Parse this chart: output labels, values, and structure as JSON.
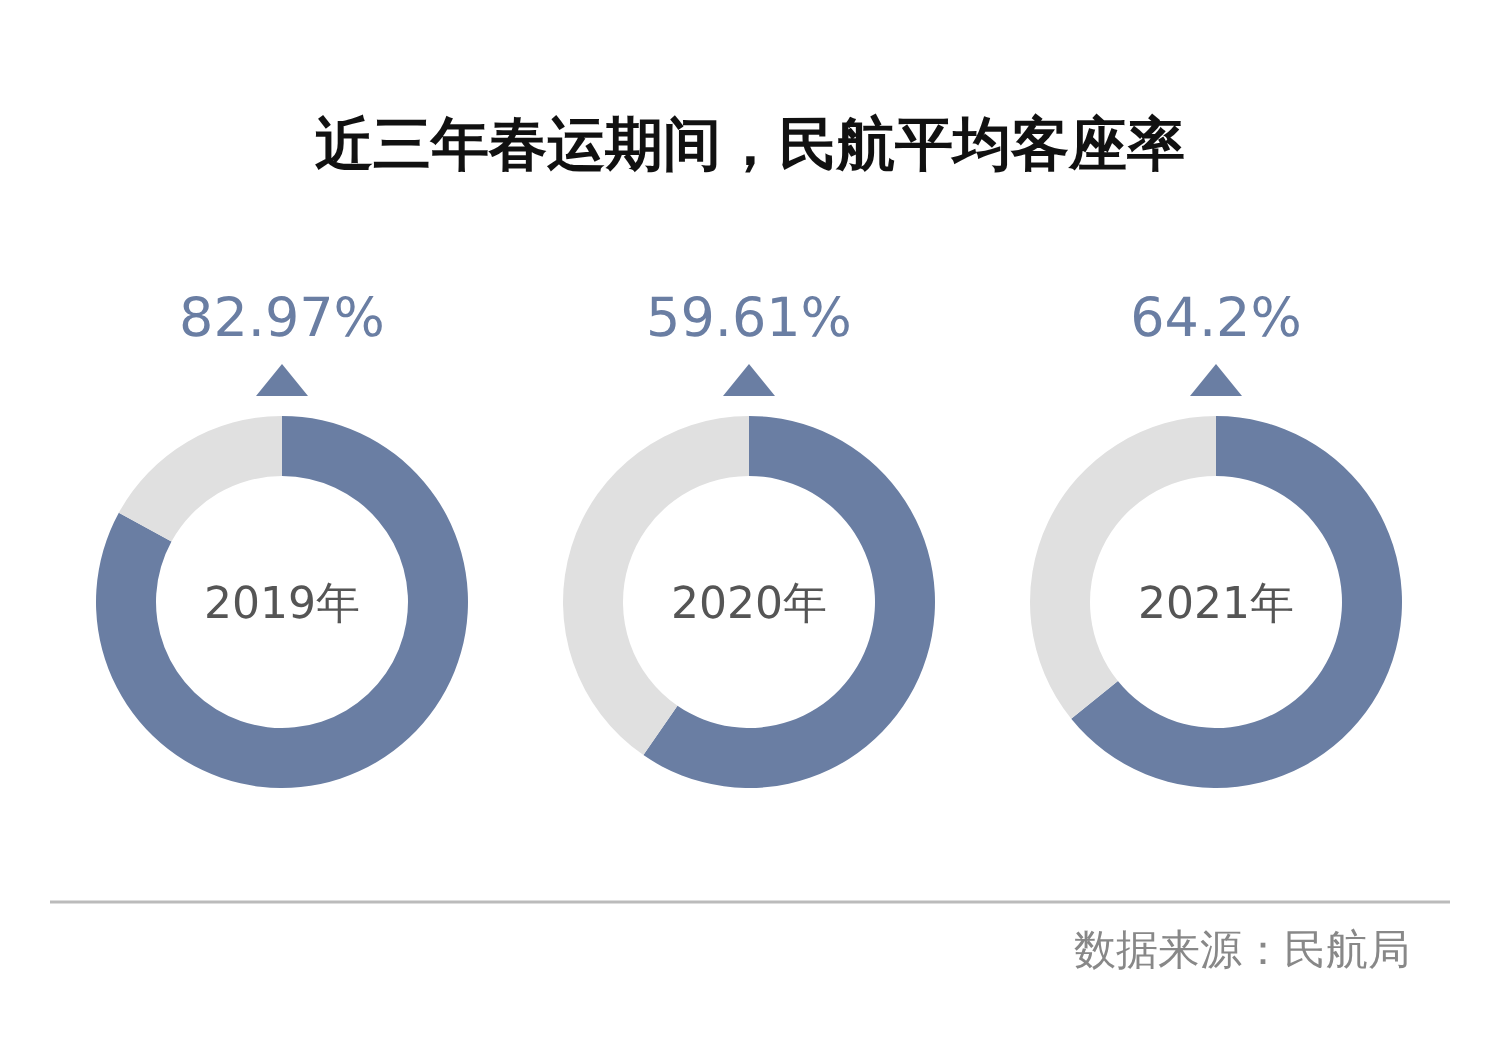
{
  "chart_data": [
    {
      "type": "donut",
      "title": "近三年春运期间，民航平均客座率",
      "categories": [
        null,
        null
      ],
      "values": [
        82.97,
        17.03
      ],
      "colors": [
        "#6a7ea3",
        "#e0e0e0"
      ],
      "value_labels": [
        "82.97%",
        null
      ],
      "annotations": [
        "2019年"
      ]
    },
    {
      "type": "donut",
      "categories": [
        null,
        null
      ],
      "values": [
        59.61,
        40.39
      ],
      "colors": [
        "#6a7ea3",
        "#e0e0e0"
      ],
      "value_labels": [
        "59.61%",
        null
      ],
      "annotations": [
        "2020年"
      ]
    },
    {
      "type": "donut",
      "categories": [
        null,
        null
      ],
      "values": [
        64.2,
        35.8
      ],
      "colors": [
        "#6a7ea3",
        "#e0e0e0"
      ],
      "value_labels": [
        "64.2%",
        null
      ],
      "annotations": [
        "2021年",
        "数据来源：民航局"
      ]
    }
  ]
}
